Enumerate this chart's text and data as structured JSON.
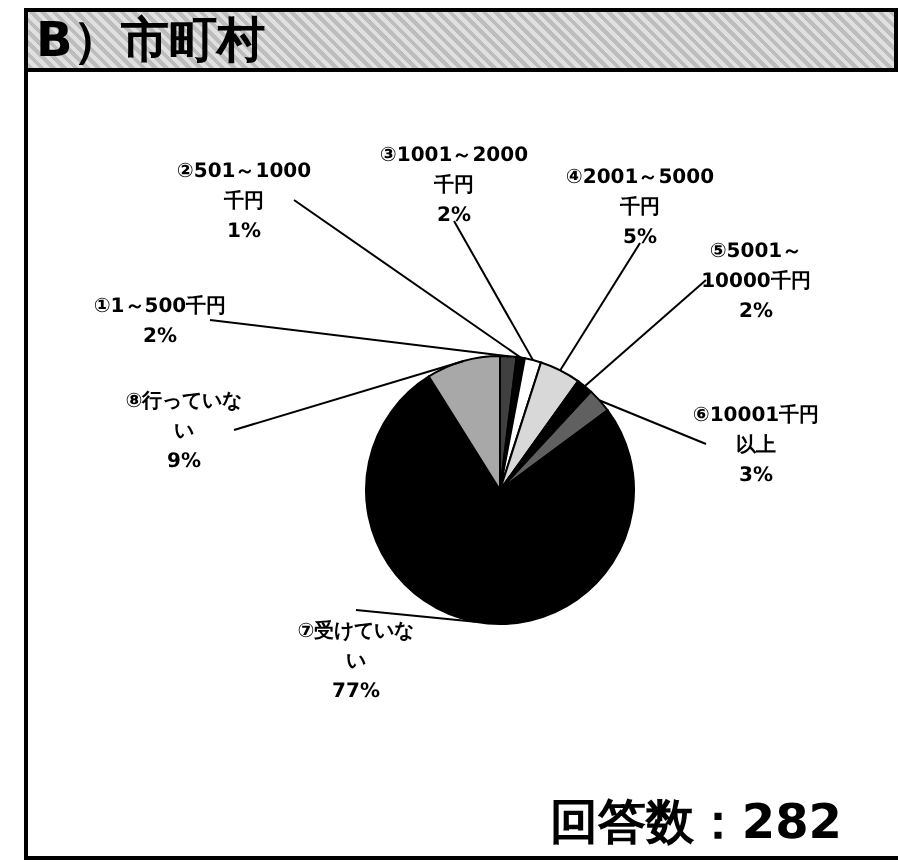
{
  "chart_data": {
    "type": "pie",
    "title": "B）市町村",
    "categories": [
      "①1～500千円",
      "②501～1000千円",
      "③1001～2000千円",
      "④2001～5000千円",
      "⑤5001～10000千円",
      "⑥10001千円以上",
      "⑦受けていない",
      "⑧行っていない"
    ],
    "values": [
      2,
      1,
      2,
      5,
      2,
      3,
      77,
      9
    ],
    "value_labels": [
      "2%",
      "1%",
      "2%",
      "5%",
      "2%",
      "3%",
      "77%",
      "9%"
    ],
    "colors": [
      "#404040",
      "#000000",
      "#ffffff",
      "#d8d8d8",
      "#000000",
      "#606060",
      "#000000",
      "#a8a8a8"
    ],
    "annotations": [
      "回答数：282"
    ],
    "legend": false
  }
}
